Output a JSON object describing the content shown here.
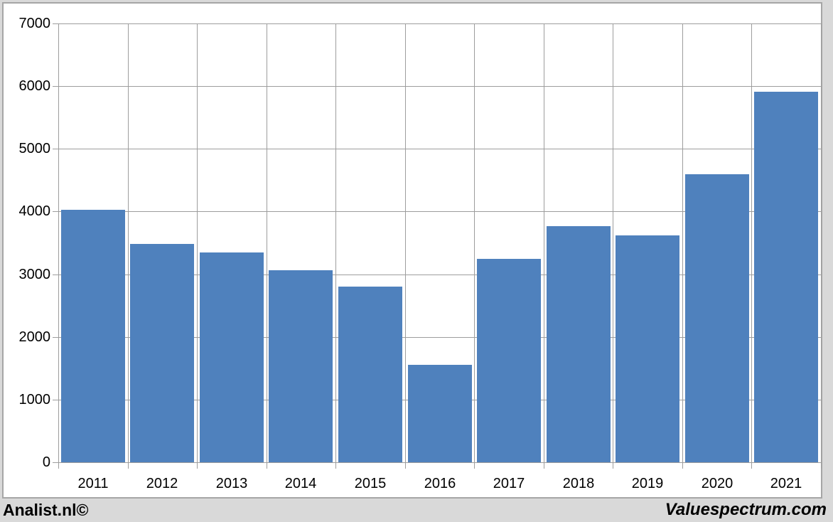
{
  "chart_data": {
    "type": "bar",
    "categories": [
      "2011",
      "2012",
      "2013",
      "2014",
      "2015",
      "2016",
      "2017",
      "2018",
      "2019",
      "2020",
      "2021"
    ],
    "values": [
      4030,
      3480,
      3350,
      3065,
      2800,
      1550,
      3245,
      3770,
      3620,
      4590,
      5915
    ],
    "title": "",
    "xlabel": "",
    "ylabel": "",
    "ylim": [
      0,
      7000
    ],
    "ytick_interval": 1000,
    "ytick_labels": [
      "0",
      "1000",
      "2000",
      "3000",
      "4000",
      "5000",
      "6000",
      "7000"
    ],
    "grid": true,
    "legend": "none",
    "bar_color": "#4f81bd",
    "gridline_color": "#9d9d9d",
    "axis_color": "#9d9d9d",
    "panel_border_color": "#a6a6a6",
    "plot_background": "#ffffff",
    "page_background": "#d9d9d9"
  },
  "footer": {
    "left_credit": "Analist.nl©",
    "right_credit": "Valuespectrum.com"
  }
}
